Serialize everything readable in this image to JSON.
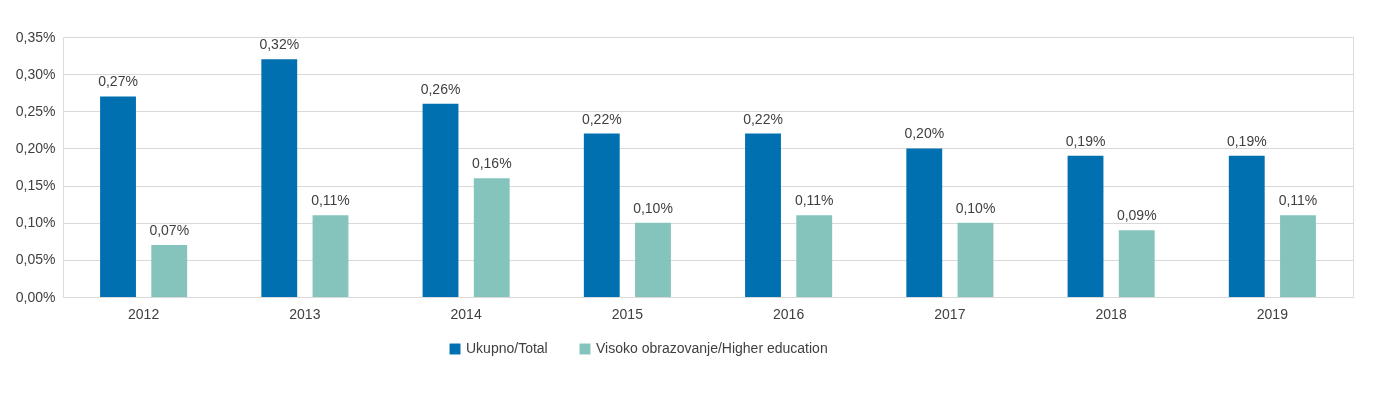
{
  "chart_data": {
    "type": "bar",
    "categories": [
      "2012",
      "2013",
      "2014",
      "2015",
      "2016",
      "2017",
      "2018",
      "2019"
    ],
    "series": [
      {
        "name": "Ukupno/Total",
        "color": "#0070b0",
        "values": [
          0.27,
          0.32,
          0.26,
          0.22,
          0.22,
          0.2,
          0.19,
          0.19
        ],
        "value_labels": [
          "0,27%",
          "0,32%",
          "0,26%",
          "0,22%",
          "0,22%",
          "0,20%",
          "0,19%",
          "0,19%"
        ]
      },
      {
        "name": "Visoko obrazovanje/Higher education",
        "color": "#85c4bc",
        "values": [
          0.07,
          0.11,
          0.16,
          0.1,
          0.11,
          0.1,
          0.09,
          0.11
        ],
        "value_labels": [
          "0,07%",
          "0,11%",
          "0,16%",
          "0,10%",
          "0,11%",
          "0,10%",
          "0,09%",
          "0,11%"
        ]
      }
    ],
    "ylim": [
      0,
      0.35
    ],
    "yticks": [
      {
        "value": 0,
        "label": "0,00%"
      },
      {
        "value": 0.05,
        "label": "0,05%"
      },
      {
        "value": 0.1,
        "label": "0,10%"
      },
      {
        "value": 0.15,
        "label": "0,15%"
      },
      {
        "value": 0.2,
        "label": "0,20%"
      },
      {
        "value": 0.25,
        "label": "0,25%"
      },
      {
        "value": 0.3,
        "label": "0,30%"
      },
      {
        "value": 0.35,
        "label": "0,35%"
      }
    ],
    "grid": "y",
    "legend": "bottom"
  }
}
